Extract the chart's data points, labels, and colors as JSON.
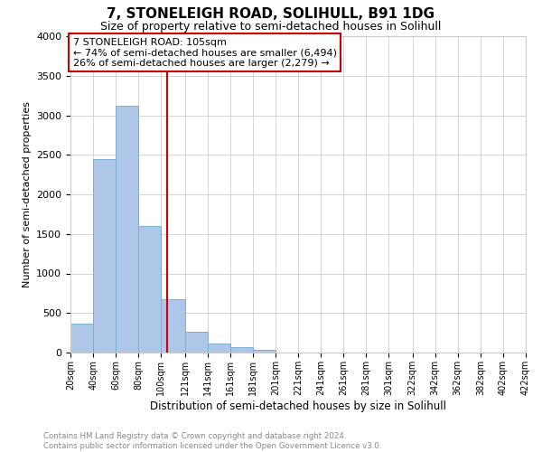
{
  "title": "7, STONELEIGH ROAD, SOLIHULL, B91 1DG",
  "subtitle": "Size of property relative to semi-detached houses in Solihull",
  "xlabel": "Distribution of semi-detached houses by size in Solihull",
  "ylabel": "Number of semi-detached properties",
  "footer_line1": "Contains HM Land Registry data © Crown copyright and database right 2024.",
  "footer_line2": "Contains public sector information licensed under the Open Government Licence v3.0.",
  "annotation_line1": "7 STONELEIGH ROAD: 105sqm",
  "annotation_line2": "← 74% of semi-detached houses are smaller (6,494)",
  "annotation_line3": "26% of semi-detached houses are larger (2,279) →",
  "property_size": 105,
  "bin_edges": [
    20,
    40,
    60,
    80,
    100,
    121,
    141,
    161,
    181,
    201,
    221,
    241,
    261,
    281,
    301,
    322,
    342,
    362,
    382,
    402,
    422
  ],
  "bin_labels": [
    "20sqm",
    "40sqm",
    "60sqm",
    "80sqm",
    "100sqm",
    "121sqm",
    "141sqm",
    "161sqm",
    "181sqm",
    "201sqm",
    "221sqm",
    "241sqm",
    "261sqm",
    "281sqm",
    "301sqm",
    "322sqm",
    "342sqm",
    "362sqm",
    "382sqm",
    "402sqm",
    "422sqm"
  ],
  "bar_heights": [
    370,
    2440,
    3120,
    1600,
    670,
    260,
    120,
    65,
    40,
    0,
    0,
    0,
    0,
    0,
    0,
    0,
    0,
    0,
    0,
    0
  ],
  "bar_color": "#aec6e8",
  "bar_edgecolor": "#7bafd4",
  "line_color": "#cc0000",
  "ylim": [
    0,
    4000
  ],
  "yticks": [
    0,
    500,
    1000,
    1500,
    2000,
    2500,
    3000,
    3500,
    4000
  ],
  "annotation_box_color": "#cc0000",
  "background_color": "#ffffff",
  "grid_color": "#cccccc",
  "fig_width": 6.0,
  "fig_height": 5.0,
  "fig_dpi": 100
}
